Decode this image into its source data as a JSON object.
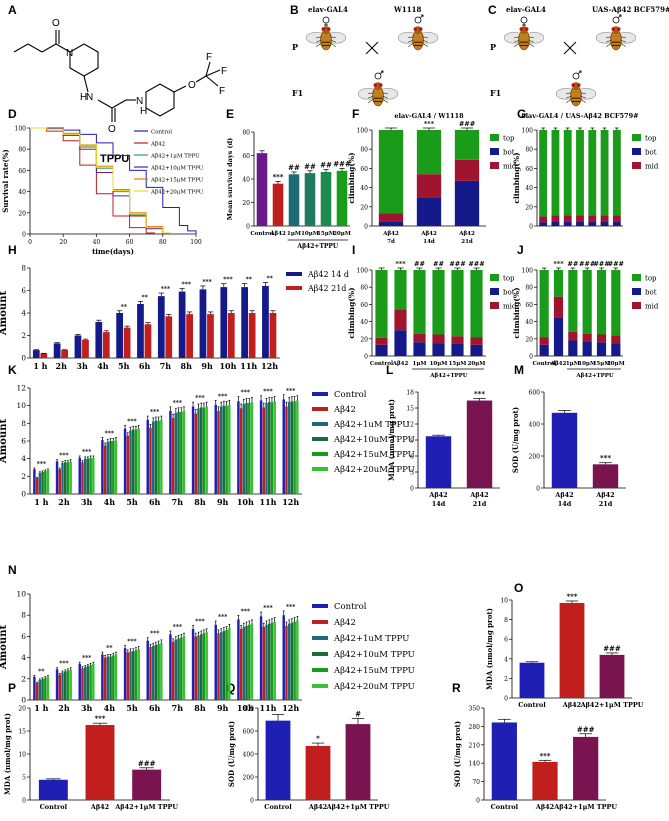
{
  "panel_letters": [
    "A",
    "B",
    "C",
    "D",
    "E",
    "F",
    "G",
    "H",
    "I",
    "J",
    "K",
    "L",
    "M",
    "N",
    "O",
    "P",
    "Q",
    "R"
  ],
  "colors": {
    "blue": "#1f1fb4",
    "red": "#c11e1e",
    "maroon": "#7a1450",
    "green": "#1a9c1a",
    "dgreen": "#1c6b3a",
    "teal": "#1e6b78",
    "navy": "#141a8a",
    "purple": "#6a1a8a",
    "lime": "#38c038"
  },
  "molecule": {
    "name": "TPPU",
    "atoms": [
      "O",
      "N",
      "N",
      "N",
      "O",
      "F",
      "F",
      "F",
      "O",
      "H",
      "H"
    ]
  },
  "crosses": {
    "B": {
      "female": "elav-GAL4",
      "male": "W1118",
      "gen_p": "P",
      "gen_f1": "F1",
      "offspring": "elav-GAL4 / W1118"
    },
    "C": {
      "female": "elav-GAL4",
      "male": "UAS-Aβ42 BCF579#",
      "gen_p": "P",
      "gen_f1": "F1",
      "offspring": "elav-GAL4 / UAS-Aβ42 BCF579#"
    }
  },
  "chart_data": [
    {
      "id": "D",
      "type": "line",
      "xlabel": "time(days)",
      "ylabel": "Survival rate(%)",
      "xlim": [
        0,
        100
      ],
      "ylim": [
        0,
        100
      ],
      "xticks": [
        0,
        20,
        40,
        60,
        80,
        100
      ],
      "yticks": [
        0,
        20,
        40,
        60,
        80,
        100
      ],
      "series": [
        {
          "name": "Control",
          "color": "#1f1fb4",
          "x": [
            0,
            10,
            20,
            30,
            40,
            50,
            60,
            70,
            80,
            90,
            95,
            100
          ],
          "y": [
            100,
            100,
            98,
            94,
            86,
            74,
            60,
            44,
            25,
            8,
            3,
            0
          ]
        },
        {
          "name": "Aβ42",
          "color": "#c11e1e",
          "x": [
            0,
            10,
            20,
            30,
            40,
            50,
            60,
            70,
            75
          ],
          "y": [
            100,
            97,
            88,
            65,
            38,
            17,
            6,
            1,
            0
          ]
        },
        {
          "name": "Aβ42+1μM TPPU",
          "color": "#2ea84a",
          "x": [
            0,
            10,
            20,
            30,
            40,
            50,
            60,
            70,
            80,
            85
          ],
          "y": [
            100,
            99,
            94,
            82,
            62,
            40,
            18,
            6,
            1,
            0
          ]
        },
        {
          "name": "Aβ42+10μM TPPU",
          "color": "#6a1a8a",
          "x": [
            0,
            10,
            20,
            30,
            40,
            50,
            60,
            70,
            80,
            85
          ],
          "y": [
            100,
            99,
            93,
            80,
            58,
            36,
            17,
            5,
            1,
            0
          ]
        },
        {
          "name": "Aβ42+15μM TPPU",
          "color": "#f07800",
          "x": [
            0,
            10,
            20,
            30,
            40,
            50,
            60,
            70,
            80,
            85
          ],
          "y": [
            100,
            99,
            95,
            84,
            64,
            42,
            20,
            7,
            1,
            0
          ]
        },
        {
          "name": "Aβ42+20μM TPPU",
          "color": "#f0d820",
          "x": [
            0,
            10,
            20,
            30,
            40,
            50,
            60,
            70,
            80,
            85
          ],
          "y": [
            100,
            99,
            94,
            83,
            63,
            41,
            19,
            6,
            1,
            0
          ]
        }
      ]
    },
    {
      "id": "E",
      "type": "bar",
      "ylabel": "Mean survival days (d)",
      "ylim": [
        0,
        80
      ],
      "yticks": [
        0,
        20,
        40,
        60,
        80
      ],
      "categories": [
        "Control",
        "Aβ42",
        "1μM",
        "10μM",
        "15μM",
        "20μM"
      ],
      "values": [
        62,
        36,
        44,
        45,
        46,
        47
      ],
      "errors": [
        2,
        2,
        2,
        2,
        2,
        2
      ],
      "colors": [
        "#6a1a8a",
        "#c11e1e",
        "#1e6b78",
        "#1e7b60",
        "#1c8a4a",
        "#1a9c1a"
      ],
      "marks": [
        "",
        "***",
        "##",
        "##",
        "##",
        "###"
      ],
      "group_label": "Aβ42+TPPU"
    },
    {
      "id": "F",
      "type": "stacked_bar",
      "title": "elav-GAL4 / W1118",
      "ylabel": "climbing(%)",
      "ylim": [
        0,
        100
      ],
      "yticks": [
        0,
        20,
        40,
        60,
        80,
        100
      ],
      "categories": [
        "Aβ42 7d",
        "Aβ42 14d",
        "Aβ42 21d"
      ],
      "series": [
        {
          "name": "bot",
          "color": "#141a8a",
          "values": [
            5,
            30,
            47
          ]
        },
        {
          "name": "mid",
          "color": "#a01430",
          "values": [
            8,
            24,
            22
          ]
        },
        {
          "name": "top",
          "color": "#1a9c1a",
          "values": [
            87,
            46,
            31
          ]
        }
      ],
      "marks": [
        "",
        "***",
        "###"
      ]
    },
    {
      "id": "G",
      "type": "stacked_bar",
      "title": "elav-GAL4 / UAS-Aβ42 BCF579#",
      "ylabel": "climbing(%)",
      "ylim": [
        0,
        100
      ],
      "yticks": [
        0,
        20,
        40,
        60,
        80,
        100
      ],
      "categories": [
        "",
        "",
        "",
        "",
        "",
        "",
        ""
      ],
      "series": [
        {
          "name": "bot",
          "color": "#141a8a",
          "values": [
            4,
            5,
            5,
            5,
            5,
            5,
            5
          ]
        },
        {
          "name": "mid",
          "color": "#a01430",
          "values": [
            6,
            6,
            6,
            6,
            6,
            6,
            6
          ]
        },
        {
          "name": "top",
          "color": "#1a9c1a",
          "values": [
            90,
            89,
            89,
            89,
            89,
            89,
            89
          ]
        }
      ],
      "marks": [
        "",
        "",
        "",
        "",
        "",
        "",
        ""
      ]
    },
    {
      "id": "H",
      "type": "bar",
      "ylabel": "Amount",
      "ylim": [
        0,
        8
      ],
      "yticks": [
        0,
        2,
        4,
        6,
        8
      ],
      "categories": [
        "1 h",
        "2h",
        "3h",
        "4h",
        "5h",
        "6h",
        "7h",
        "8h",
        "9h",
        "10h",
        "11h",
        "12h"
      ],
      "series": [
        {
          "name": "Aβ42 14 d",
          "color": "#141a8a",
          "values": [
            0.7,
            1.3,
            2.0,
            3.2,
            4.0,
            4.8,
            5.5,
            5.9,
            6.1,
            6.3,
            6.3,
            6.4
          ]
        },
        {
          "name": "Aβ42 21d",
          "color": "#c11e1e",
          "values": [
            0.4,
            0.7,
            1.6,
            2.3,
            2.7,
            3.0,
            3.7,
            3.9,
            3.9,
            4.0,
            4.0,
            4.0
          ]
        }
      ],
      "marks": [
        "",
        "",
        "",
        "",
        "**",
        "**",
        "***",
        "***",
        "***",
        "***",
        "**",
        "**"
      ]
    },
    {
      "id": "I",
      "type": "stacked_bar",
      "ylabel": "climbing(%)",
      "ylim": [
        0,
        100
      ],
      "yticks": [
        0,
        20,
        40,
        60,
        80,
        100
      ],
      "categories": [
        "Control",
        "Aβ42",
        "1μM",
        "10μM",
        "15μM",
        "20μM"
      ],
      "group_label": "Aβ42+TPPU",
      "series": [
        {
          "name": "bot",
          "color": "#141a8a",
          "values": [
            13,
            30,
            16,
            15,
            14,
            13
          ]
        },
        {
          "name": "mid",
          "color": "#a01430",
          "values": [
            8,
            24,
            10,
            10,
            9,
            9
          ]
        },
        {
          "name": "top",
          "color": "#1a9c1a",
          "values": [
            79,
            46,
            74,
            75,
            77,
            78
          ]
        }
      ],
      "marks": [
        "",
        "***",
        "##",
        "##",
        "###",
        "###"
      ]
    },
    {
      "id": "J",
      "type": "stacked_bar",
      "ylabel": "climbing(%)",
      "ylim": [
        0,
        100
      ],
      "yticks": [
        0,
        20,
        40,
        60,
        80,
        100
      ],
      "categories": [
        "Control",
        "Aβ42",
        "1μM",
        "10μM",
        "15μM",
        "20μM"
      ],
      "group_label": "Aβ42+TPPU",
      "series": [
        {
          "name": "bot",
          "color": "#141a8a",
          "values": [
            13,
            45,
            18,
            17,
            16,
            15
          ]
        },
        {
          "name": "mid",
          "color": "#a01430",
          "values": [
            9,
            24,
            10,
            9,
            9,
            9
          ]
        },
        {
          "name": "top",
          "color": "#1a9c1a",
          "values": [
            78,
            31,
            72,
            74,
            75,
            76
          ]
        }
      ],
      "marks": [
        "",
        "***",
        "##",
        "###",
        "###",
        "###"
      ]
    },
    {
      "id": "K",
      "type": "bar",
      "ylabel": "Amount",
      "ylim": [
        0,
        12
      ],
      "yticks": [
        0,
        2,
        4,
        6,
        8,
        10,
        12
      ],
      "categories": [
        "1 h",
        "2h",
        "3h",
        "4h",
        "5h",
        "6h",
        "7h",
        "8h",
        "9h",
        "10h",
        "11h",
        "12h"
      ],
      "series": [
        {
          "name": "Control",
          "color": "#1f1fb4",
          "values": [
            2.8,
            3.7,
            4.1,
            6.1,
            7.4,
            8.4,
            9.4,
            9.9,
            10.1,
            10.5,
            10.6,
            10.7
          ]
        },
        {
          "name": "Aβ42",
          "color": "#c11e1e",
          "values": [
            1.8,
            2.8,
            3.6,
            5.5,
            6.6,
            7.5,
            8.6,
            9.1,
            9.4,
            9.7,
            9.8,
            9.9
          ]
        },
        {
          "name": "Aβ42+1uM TPPU",
          "color": "#1e6b78",
          "values": [
            2.4,
            3.5,
            4.0,
            5.9,
            7.2,
            8.2,
            9.2,
            9.7,
            9.9,
            10.2,
            10.3,
            10.4
          ]
        },
        {
          "name": "Aβ42+10uM TPPU",
          "color": "#1c6b3a",
          "values": [
            2.5,
            3.6,
            4.0,
            6.0,
            7.3,
            8.3,
            9.3,
            9.8,
            10.0,
            10.3,
            10.4,
            10.5
          ]
        },
        {
          "name": "Aβ42+15uM TPPU",
          "color": "#1a9c1a",
          "values": [
            2.6,
            3.6,
            4.1,
            6.0,
            7.3,
            8.3,
            9.3,
            9.8,
            10.0,
            10.3,
            10.4,
            10.5
          ]
        },
        {
          "name": "Aβ42+20uM TPPU",
          "color": "#38c038",
          "values": [
            2.7,
            3.7,
            4.1,
            6.1,
            7.4,
            8.4,
            9.4,
            9.9,
            10.1,
            10.4,
            10.5,
            10.6
          ]
        }
      ],
      "marks": [
        "***",
        "***",
        "***",
        "***",
        "***",
        "***",
        "***",
        "***",
        "***",
        "***",
        "***",
        "***"
      ]
    },
    {
      "id": "L",
      "type": "bar",
      "ylabel": "MDA (nmol/mg prot)",
      "ylim": [
        0,
        18
      ],
      "yticks": [
        0,
        3,
        6,
        9,
        12,
        15,
        18
      ],
      "categories": [
        "Aβ42 14d",
        "Aβ42 21d"
      ],
      "values": [
        9.7,
        16.4
      ],
      "errors": [
        0.2,
        0.4
      ],
      "colors": [
        "#1f1fb4",
        "#7a1450"
      ],
      "marks": [
        "",
        "***"
      ]
    },
    {
      "id": "M",
      "type": "bar",
      "ylabel": "SOD (U/mg prot)",
      "ylim": [
        0,
        600
      ],
      "yticks": [
        0,
        200,
        400,
        600
      ],
      "categories": [
        "Aβ42 14d",
        "Aβ42 21d"
      ],
      "values": [
        470,
        148
      ],
      "errors": [
        15,
        10
      ],
      "colors": [
        "#1f1fb4",
        "#7a1450"
      ],
      "marks": [
        "",
        "***"
      ]
    },
    {
      "id": "N",
      "type": "bar",
      "ylabel": "Amount",
      "ylim": [
        0,
        10
      ],
      "yticks": [
        0,
        2,
        4,
        6,
        8,
        10
      ],
      "categories": [
        "1 h",
        "2h",
        "3h",
        "4h",
        "5h",
        "6h",
        "7h",
        "8h",
        "9h",
        "10h",
        "11h",
        "12h"
      ],
      "series": [
        {
          "name": "Control",
          "color": "#1f1fb4",
          "values": [
            2.2,
            2.9,
            3.4,
            4.3,
            4.9,
            5.6,
            6.2,
            6.7,
            7.1,
            7.6,
            7.9,
            8.0
          ]
        },
        {
          "name": "Aβ42",
          "color": "#c11e1e",
          "values": [
            1.6,
            2.4,
            3.0,
            4.0,
            4.5,
            5.0,
            5.5,
            6.0,
            6.3,
            6.7,
            6.9,
            7.0
          ]
        },
        {
          "name": "Aβ42+1uM TPPU",
          "color": "#1e6b78",
          "values": [
            1.9,
            2.6,
            3.1,
            4.1,
            4.6,
            5.1,
            5.7,
            6.1,
            6.4,
            6.9,
            7.1,
            7.2
          ]
        },
        {
          "name": "Aβ42+10uM TPPU",
          "color": "#1c6b3a",
          "values": [
            2.0,
            2.7,
            3.2,
            4.1,
            4.6,
            5.2,
            5.8,
            6.2,
            6.5,
            7.0,
            7.2,
            7.3
          ]
        },
        {
          "name": "Aβ42+15uM TPPU",
          "color": "#1a9c1a",
          "values": [
            2.1,
            2.8,
            3.3,
            4.2,
            4.7,
            5.3,
            5.9,
            6.3,
            6.6,
            7.1,
            7.3,
            7.4
          ]
        },
        {
          "name": "Aβ42+20uM TPPU",
          "color": "#38c038",
          "values": [
            2.2,
            2.9,
            3.4,
            4.3,
            4.8,
            5.4,
            6.0,
            6.4,
            6.8,
            7.2,
            7.4,
            7.5
          ]
        }
      ],
      "marks": [
        "**",
        "***",
        "***",
        "**",
        "***",
        "***",
        "***",
        "***",
        "***",
        "***",
        "***",
        "***"
      ]
    },
    {
      "id": "O",
      "type": "bar",
      "ylabel": "MDA (nmol/mg prot)",
      "ylim": [
        0,
        10
      ],
      "yticks": [
        0,
        2,
        4,
        6,
        8,
        10
      ],
      "categories": [
        "Control",
        "Aβ42",
        "Aβ42+1μM  TPPU"
      ],
      "values": [
        3.6,
        9.7,
        4.4
      ],
      "errors": [
        0.1,
        0.2,
        0.2
      ],
      "colors": [
        "#1f1fb4",
        "#c11e1e",
        "#7a1450"
      ],
      "marks": [
        "",
        "***",
        "###"
      ]
    },
    {
      "id": "P",
      "type": "bar",
      "ylabel": "MDA (nmol/mg prot)",
      "ylim": [
        0,
        20
      ],
      "yticks": [
        0,
        5,
        10,
        15,
        20
      ],
      "categories": [
        "Control",
        "Aβ42",
        "Aβ42+1μM  TPPU"
      ],
      "values": [
        4.4,
        16.3,
        6.6
      ],
      "errors": [
        0.2,
        0.4,
        0.4
      ],
      "colors": [
        "#1f1fb4",
        "#c11e1e",
        "#7a1450"
      ],
      "marks": [
        "",
        "***",
        "###"
      ]
    },
    {
      "id": "Q",
      "type": "bar",
      "ylabel": "SOD (U/mg prot)",
      "ylim": [
        0,
        800
      ],
      "yticks": [
        0,
        200,
        400,
        600,
        800
      ],
      "categories": [
        "Control",
        "Aβ42",
        "Aβ42+1μM  TPPU"
      ],
      "values": [
        690,
        470,
        660
      ],
      "errors": [
        55,
        25,
        50
      ],
      "colors": [
        "#1f1fb4",
        "#c11e1e",
        "#7a1450"
      ],
      "marks": [
        "",
        "*",
        "#"
      ]
    },
    {
      "id": "R",
      "type": "bar",
      "ylabel": "SOD (U/mg prot)",
      "ylim": [
        0,
        350
      ],
      "yticks": [
        0,
        70,
        140,
        210,
        280,
        350
      ],
      "categories": [
        "Control",
        "Aβ42",
        "Aβ42+1μM  TPPU"
      ],
      "values": [
        295,
        145,
        240
      ],
      "errors": [
        12,
        6,
        12
      ],
      "colors": [
        "#1f1fb4",
        "#c11e1e",
        "#7a1450"
      ],
      "marks": [
        "",
        "***",
        "###"
      ]
    }
  ]
}
